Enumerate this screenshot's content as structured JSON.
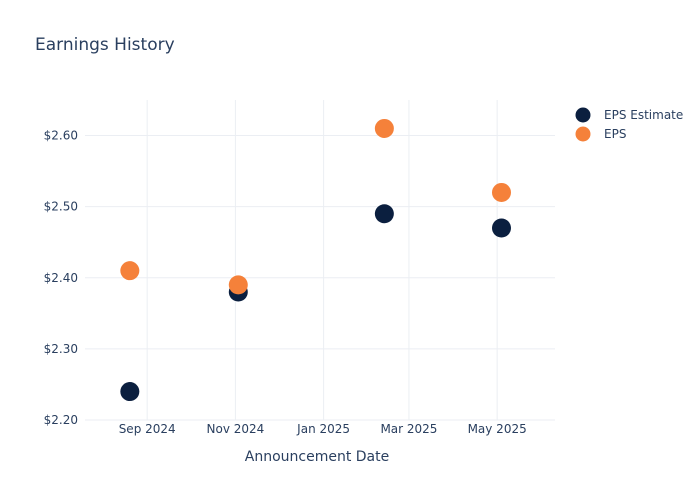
{
  "colors": {
    "estimate": "#0b1f3f",
    "eps": "#f5813a",
    "grid": "#ebeef3",
    "text": "#2a3f5f"
  },
  "chart_data": {
    "type": "scatter",
    "title": "Earnings History",
    "xlabel": "Announcement Date",
    "ylabel": "",
    "x_type": "date",
    "xlim": [
      "2024-07-20",
      "2025-06-10"
    ],
    "ylim": [
      2.2,
      2.65
    ],
    "x_ticks": [
      {
        "date": "2024-09-01",
        "label": "Sep 2024"
      },
      {
        "date": "2024-11-01",
        "label": "Nov 2024"
      },
      {
        "date": "2025-01-01",
        "label": "Jan 2025"
      },
      {
        "date": "2025-03-01",
        "label": "Mar 2025"
      },
      {
        "date": "2025-05-01",
        "label": "May 2025"
      }
    ],
    "y_ticks": [
      {
        "value": 2.2,
        "label": "$2.20"
      },
      {
        "value": 2.3,
        "label": "$2.30"
      },
      {
        "value": 2.4,
        "label": "$2.40"
      },
      {
        "value": 2.5,
        "label": "$2.50"
      },
      {
        "value": 2.6,
        "label": "$2.60"
      }
    ],
    "grid": true,
    "legend_position": "top-right",
    "series": [
      {
        "name": "EPS Estimate",
        "color": "#0b1f3f",
        "points": [
          {
            "x": "2024-08-20",
            "y": 2.24
          },
          {
            "x": "2024-11-03",
            "y": 2.38
          },
          {
            "x": "2025-02-12",
            "y": 2.49
          },
          {
            "x": "2025-05-04",
            "y": 2.47
          }
        ]
      },
      {
        "name": "EPS",
        "color": "#f5813a",
        "points": [
          {
            "x": "2024-08-20",
            "y": 2.41
          },
          {
            "x": "2024-11-03",
            "y": 2.39
          },
          {
            "x": "2025-02-12",
            "y": 2.61
          },
          {
            "x": "2025-05-04",
            "y": 2.52
          }
        ]
      }
    ]
  }
}
